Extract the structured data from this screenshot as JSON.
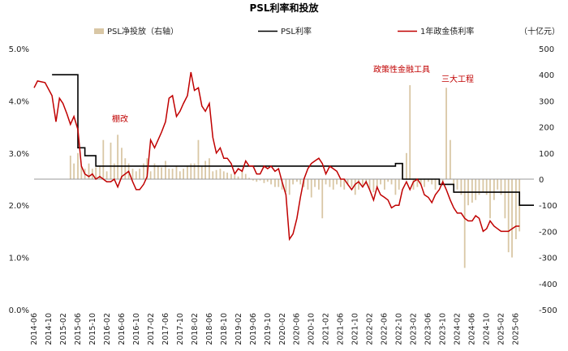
{
  "chart_data": {
    "type": "bar+line",
    "title": "PSL利率和投放",
    "legend": [
      "PSL净投放（右轴）",
      "PSL利率",
      "1年政金债利率"
    ],
    "right_unit": "（十亿元）",
    "left_axis": {
      "min": 0,
      "max": 5,
      "ticks": [
        "0.0%",
        "1.0%",
        "2.0%",
        "3.0%",
        "4.0%",
        "5.0%"
      ]
    },
    "right_axis": {
      "min": -500,
      "max": 500,
      "ticks": [
        "-500",
        "-400",
        "-300",
        "-200",
        "-100",
        "0",
        "100",
        "200",
        "300",
        "400",
        "500"
      ]
    },
    "x_labels": [
      "2014-06",
      "2014-10",
      "2015-02",
      "2015-06",
      "2015-10",
      "2016-02",
      "2016-06",
      "2016-10",
      "2017-02",
      "2017-06",
      "2017-10",
      "2018-02",
      "2018-06",
      "2018-10",
      "2019-02",
      "2019-06",
      "2019-10",
      "2020-02",
      "2020-06",
      "2020-10",
      "2021-02",
      "2021-06",
      "2021-10",
      "2022-02",
      "2022-06",
      "2022-10",
      "2023-02",
      "2023-06",
      "2023-10",
      "2024-02",
      "2024-06",
      "2024-10",
      "2025-02",
      "2025-06"
    ],
    "annotations": [
      "棚改",
      "政策性金融工具",
      "三大工程"
    ],
    "colors": {
      "bar": "#d9c7a5",
      "psl": "#000000",
      "bond": "#c00000"
    },
    "psl_rate": [
      [
        2014.83,
        4.5
      ],
      [
        2015.33,
        4.5
      ],
      [
        2015.42,
        3.1
      ],
      [
        2015.58,
        2.95
      ],
      [
        2015.83,
        2.75
      ],
      [
        2019.92,
        2.75
      ],
      [
        2022.67,
        2.8
      ],
      [
        2022.83,
        2.5
      ],
      [
        2023.5,
        2.5
      ],
      [
        2023.67,
        2.4
      ],
      [
        2024.0,
        2.25
      ],
      [
        2025.42,
        2.25
      ],
      [
        2025.5,
        2.0
      ],
      [
        2025.83,
        2.0
      ]
    ],
    "bond_yield": [
      [
        2014.42,
        4.25
      ],
      [
        2014.5,
        4.38
      ],
      [
        2014.67,
        4.35
      ],
      [
        2014.83,
        4.1
      ],
      [
        2014.92,
        3.6
      ],
      [
        2015.0,
        4.05
      ],
      [
        2015.08,
        3.95
      ],
      [
        2015.17,
        3.75
      ],
      [
        2015.25,
        3.55
      ],
      [
        2015.33,
        3.7
      ],
      [
        2015.42,
        3.45
      ],
      [
        2015.5,
        2.75
      ],
      [
        2015.58,
        2.6
      ],
      [
        2015.67,
        2.55
      ],
      [
        2015.75,
        2.6
      ],
      [
        2015.83,
        2.5
      ],
      [
        2015.92,
        2.55
      ],
      [
        2016.0,
        2.5
      ],
      [
        2016.08,
        2.45
      ],
      [
        2016.17,
        2.45
      ],
      [
        2016.25,
        2.5
      ],
      [
        2016.33,
        2.35
      ],
      [
        2016.42,
        2.55
      ],
      [
        2016.5,
        2.6
      ],
      [
        2016.58,
        2.65
      ],
      [
        2016.67,
        2.45
      ],
      [
        2016.75,
        2.3
      ],
      [
        2016.83,
        2.3
      ],
      [
        2016.92,
        2.4
      ],
      [
        2017.0,
        2.55
      ],
      [
        2017.08,
        3.25
      ],
      [
        2017.17,
        3.1
      ],
      [
        2017.25,
        3.25
      ],
      [
        2017.33,
        3.4
      ],
      [
        2017.42,
        3.6
      ],
      [
        2017.5,
        4.05
      ],
      [
        2017.58,
        4.1
      ],
      [
        2017.67,
        3.7
      ],
      [
        2017.75,
        3.8
      ],
      [
        2017.83,
        3.95
      ],
      [
        2017.92,
        4.1
      ],
      [
        2018.0,
        4.55
      ],
      [
        2018.08,
        4.2
      ],
      [
        2018.17,
        4.25
      ],
      [
        2018.25,
        3.9
      ],
      [
        2018.33,
        3.8
      ],
      [
        2018.42,
        3.95
      ],
      [
        2018.5,
        3.3
      ],
      [
        2018.58,
        3.0
      ],
      [
        2018.67,
        3.1
      ],
      [
        2018.75,
        2.9
      ],
      [
        2018.83,
        2.9
      ],
      [
        2018.92,
        2.8
      ],
      [
        2019.0,
        2.6
      ],
      [
        2019.08,
        2.7
      ],
      [
        2019.17,
        2.65
      ],
      [
        2019.25,
        2.85
      ],
      [
        2019.33,
        2.75
      ],
      [
        2019.42,
        2.75
      ],
      [
        2019.5,
        2.6
      ],
      [
        2019.58,
        2.6
      ],
      [
        2019.67,
        2.75
      ],
      [
        2019.75,
        2.7
      ],
      [
        2019.83,
        2.75
      ],
      [
        2019.92,
        2.65
      ],
      [
        2020.0,
        2.7
      ],
      [
        2020.08,
        2.45
      ],
      [
        2020.17,
        2.2
      ],
      [
        2020.25,
        1.35
      ],
      [
        2020.33,
        1.45
      ],
      [
        2020.42,
        1.75
      ],
      [
        2020.5,
        2.15
      ],
      [
        2020.58,
        2.5
      ],
      [
        2020.67,
        2.7
      ],
      [
        2020.75,
        2.8
      ],
      [
        2020.83,
        2.85
      ],
      [
        2020.92,
        2.9
      ],
      [
        2021.0,
        2.8
      ],
      [
        2021.08,
        2.6
      ],
      [
        2021.17,
        2.75
      ],
      [
        2021.25,
        2.7
      ],
      [
        2021.33,
        2.65
      ],
      [
        2021.42,
        2.5
      ],
      [
        2021.5,
        2.5
      ],
      [
        2021.58,
        2.4
      ],
      [
        2021.67,
        2.3
      ],
      [
        2021.75,
        2.4
      ],
      [
        2021.83,
        2.45
      ],
      [
        2021.92,
        2.35
      ],
      [
        2022.0,
        2.45
      ],
      [
        2022.08,
        2.3
      ],
      [
        2022.17,
        2.1
      ],
      [
        2022.25,
        2.35
      ],
      [
        2022.33,
        2.2
      ],
      [
        2022.42,
        2.15
      ],
      [
        2022.5,
        2.1
      ],
      [
        2022.58,
        1.95
      ],
      [
        2022.67,
        2.0
      ],
      [
        2022.75,
        2.0
      ],
      [
        2022.83,
        2.3
      ],
      [
        2022.92,
        2.45
      ],
      [
        2023.0,
        2.3
      ],
      [
        2023.08,
        2.45
      ],
      [
        2023.17,
        2.5
      ],
      [
        2023.25,
        2.4
      ],
      [
        2023.33,
        2.2
      ],
      [
        2023.42,
        2.15
      ],
      [
        2023.5,
        2.05
      ],
      [
        2023.58,
        2.2
      ],
      [
        2023.67,
        2.3
      ],
      [
        2023.75,
        2.45
      ],
      [
        2023.83,
        2.3
      ],
      [
        2023.92,
        2.1
      ],
      [
        2024.0,
        1.95
      ],
      [
        2024.08,
        1.85
      ],
      [
        2024.17,
        1.85
      ],
      [
        2024.25,
        1.75
      ],
      [
        2024.33,
        1.7
      ],
      [
        2024.42,
        1.7
      ],
      [
        2024.5,
        1.8
      ],
      [
        2024.58,
        1.75
      ],
      [
        2024.67,
        1.5
      ],
      [
        2024.75,
        1.55
      ],
      [
        2024.83,
        1.7
      ],
      [
        2024.92,
        1.6
      ],
      [
        2025.0,
        1.55
      ],
      [
        2025.08,
        1.5
      ],
      [
        2025.17,
        1.5
      ],
      [
        2025.25,
        1.5
      ],
      [
        2025.33,
        1.55
      ],
      [
        2025.42,
        1.6
      ],
      [
        2025.5,
        1.6
      ]
    ],
    "bar_values": [
      [
        2015.25,
        90
      ],
      [
        2015.33,
        60
      ],
      [
        2015.42,
        100
      ],
      [
        2015.5,
        50
      ],
      [
        2015.58,
        40
      ],
      [
        2015.67,
        60
      ],
      [
        2015.75,
        40
      ],
      [
        2015.83,
        45
      ],
      [
        2015.92,
        50
      ],
      [
        2016.0,
        150
      ],
      [
        2016.08,
        30
      ],
      [
        2016.17,
        140
      ],
      [
        2016.25,
        60
      ],
      [
        2016.33,
        170
      ],
      [
        2016.42,
        120
      ],
      [
        2016.5,
        80
      ],
      [
        2016.58,
        60
      ],
      [
        2016.67,
        40
      ],
      [
        2016.75,
        30
      ],
      [
        2016.83,
        40
      ],
      [
        2016.92,
        60
      ],
      [
        2017.0,
        80
      ],
      [
        2017.08,
        30
      ],
      [
        2017.17,
        60
      ],
      [
        2017.25,
        50
      ],
      [
        2017.33,
        45
      ],
      [
        2017.42,
        70
      ],
      [
        2017.5,
        40
      ],
      [
        2017.58,
        40
      ],
      [
        2017.67,
        50
      ],
      [
        2017.75,
        30
      ],
      [
        2017.83,
        40
      ],
      [
        2017.92,
        50
      ],
      [
        2018.0,
        60
      ],
      [
        2018.08,
        60
      ],
      [
        2018.17,
        150
      ],
      [
        2018.25,
        50
      ],
      [
        2018.33,
        70
      ],
      [
        2018.42,
        80
      ],
      [
        2018.5,
        30
      ],
      [
        2018.58,
        35
      ],
      [
        2018.67,
        40
      ],
      [
        2018.75,
        30
      ],
      [
        2018.83,
        25
      ],
      [
        2018.92,
        20
      ],
      [
        2019.0,
        15
      ],
      [
        2019.08,
        10
      ],
      [
        2019.17,
        30
      ],
      [
        2019.25,
        20
      ],
      [
        2019.33,
        5
      ],
      [
        2019.42,
        -5
      ],
      [
        2019.5,
        -10
      ],
      [
        2019.58,
        -5
      ],
      [
        2019.67,
        -15
      ],
      [
        2019.75,
        -10
      ],
      [
        2019.83,
        -20
      ],
      [
        2019.92,
        -30
      ],
      [
        2020.0,
        -30
      ],
      [
        2020.08,
        -40
      ],
      [
        2020.17,
        -50
      ],
      [
        2020.25,
        -60
      ],
      [
        2020.33,
        -20
      ],
      [
        2020.42,
        -10
      ],
      [
        2020.5,
        -20
      ],
      [
        2020.58,
        -30
      ],
      [
        2020.67,
        -40
      ],
      [
        2020.75,
        -70
      ],
      [
        2020.83,
        -30
      ],
      [
        2020.92,
        -40
      ],
      [
        2021.0,
        -150
      ],
      [
        2021.08,
        -20
      ],
      [
        2021.17,
        -30
      ],
      [
        2021.25,
        -40
      ],
      [
        2021.33,
        -20
      ],
      [
        2021.42,
        -30
      ],
      [
        2021.5,
        -40
      ],
      [
        2021.58,
        -20
      ],
      [
        2021.67,
        -30
      ],
      [
        2021.75,
        -60
      ],
      [
        2021.83,
        -40
      ],
      [
        2021.92,
        -30
      ],
      [
        2022.0,
        -20
      ],
      [
        2022.08,
        -40
      ],
      [
        2022.17,
        -50
      ],
      [
        2022.25,
        -30
      ],
      [
        2022.33,
        -20
      ],
      [
        2022.42,
        -40
      ],
      [
        2022.5,
        -10
      ],
      [
        2022.58,
        -20
      ],
      [
        2022.67,
        -60
      ],
      [
        2022.75,
        -40
      ],
      [
        2022.83,
        60
      ],
      [
        2022.92,
        100
      ],
      [
        2023.0,
        360
      ],
      [
        2023.08,
        -40
      ],
      [
        2023.17,
        -30
      ],
      [
        2023.25,
        -20
      ],
      [
        2023.33,
        -30
      ],
      [
        2023.42,
        -10
      ],
      [
        2023.5,
        -20
      ],
      [
        2023.58,
        -40
      ],
      [
        2023.67,
        -20
      ],
      [
        2023.75,
        -10
      ],
      [
        2023.83,
        350
      ],
      [
        2023.92,
        150
      ],
      [
        2024.0,
        -30
      ],
      [
        2024.08,
        -40
      ],
      [
        2024.17,
        -60
      ],
      [
        2024.25,
        -340
      ],
      [
        2024.33,
        -100
      ],
      [
        2024.42,
        -90
      ],
      [
        2024.5,
        -80
      ],
      [
        2024.58,
        -60
      ],
      [
        2024.67,
        -50
      ],
      [
        2024.75,
        -60
      ],
      [
        2024.83,
        -150
      ],
      [
        2024.92,
        -80
      ],
      [
        2025.0,
        -40
      ],
      [
        2025.08,
        -60
      ],
      [
        2025.17,
        -150
      ],
      [
        2025.25,
        -280
      ],
      [
        2025.33,
        -300
      ],
      [
        2025.42,
        -230
      ],
      [
        2025.5,
        -200
      ]
    ]
  }
}
